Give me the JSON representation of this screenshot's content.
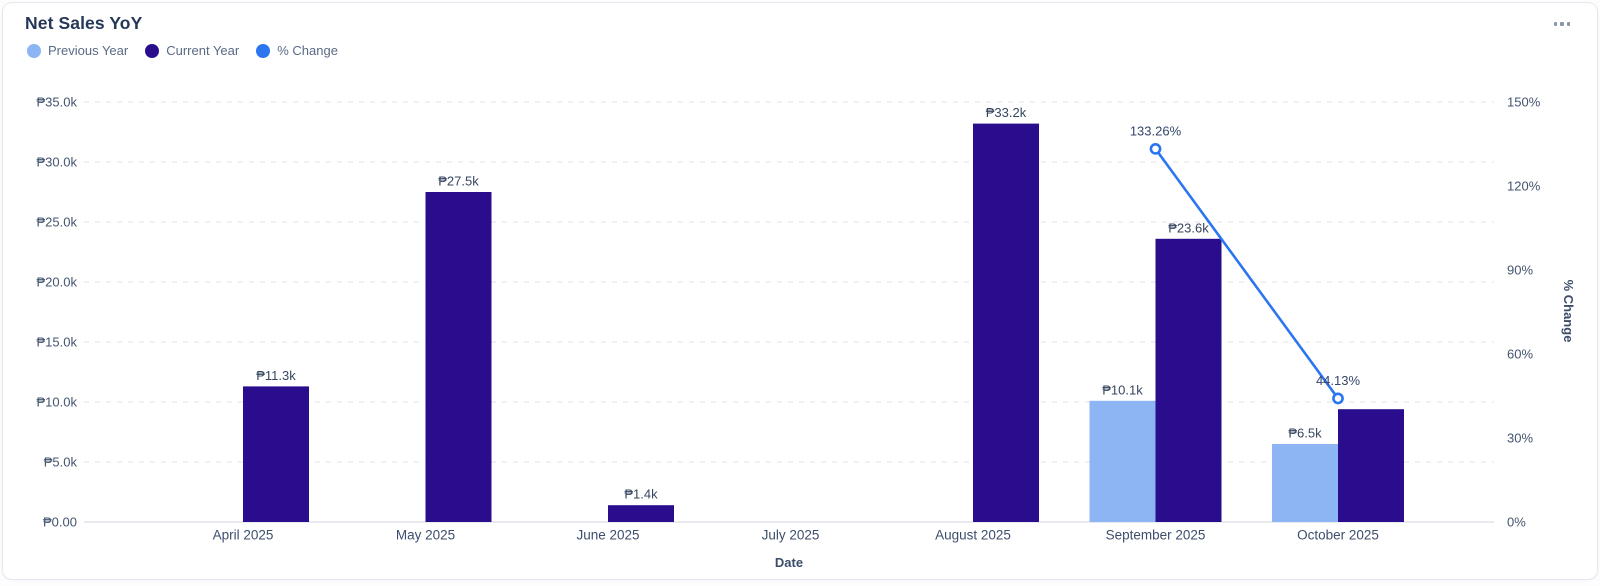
{
  "header": {
    "title": "Net Sales YoY"
  },
  "legend": {
    "items": [
      {
        "label": "Previous Year",
        "color": "#8db5f3"
      },
      {
        "label": "Current Year",
        "color": "#290d8d"
      },
      {
        "label": "% Change",
        "color": "#2b76f0"
      }
    ]
  },
  "chart_data": {
    "type": "bar",
    "subtype": "grouped-bars-with-line-dual-axis",
    "title": "Net Sales YoY",
    "xlabel": "Date",
    "ylabel_right": "% Change",
    "grid": "dashed horizontal gridlines, legend top-left",
    "categories": [
      "April 2025",
      "May 2025",
      "June 2025",
      "July 2025",
      "August 2025",
      "September 2025",
      "October 2025"
    ],
    "series": [
      {
        "name": "Previous Year",
        "type": "bar",
        "axis": "left",
        "color": "#8db5f3",
        "values": [
          null,
          null,
          null,
          null,
          null,
          10100,
          6500
        ],
        "value_labels": [
          "",
          "",
          "",
          "",
          "",
          "₱10.1k",
          "₱6.5k"
        ]
      },
      {
        "name": "Current Year",
        "type": "bar",
        "axis": "left",
        "color": "#290d8d",
        "values": [
          11300,
          27500,
          1400,
          null,
          33200,
          23600,
          9400
        ],
        "value_labels": [
          "₱11.3k",
          "₱27.5k",
          "₱1.4k",
          "",
          "₱33.2k",
          "₱23.6k",
          ""
        ]
      },
      {
        "name": "% Change",
        "type": "line",
        "axis": "right",
        "color": "#2b76f0",
        "values": [
          null,
          null,
          null,
          null,
          null,
          133.26,
          44.13
        ],
        "value_labels": [
          "",
          "",
          "",
          "",
          "",
          "133.26%",
          "44.13%"
        ]
      }
    ],
    "left_axis": {
      "min": 0,
      "max": 35000,
      "tick_values": [
        35000,
        30000,
        25000,
        20000,
        15000,
        10000,
        5000,
        0
      ],
      "tick_labels": [
        "₱35.0k",
        "₱30.0k",
        "₱25.0k",
        "₱20.0k",
        "₱15.0k",
        "₱10.0k",
        "₱5.0k",
        "₱0.00"
      ]
    },
    "right_axis": {
      "title": "% Change",
      "min": 0,
      "max": 150,
      "tick_values": [
        150,
        120,
        90,
        60,
        30,
        0
      ],
      "tick_labels": [
        "150%",
        "120%",
        "90%",
        "60%",
        "30%",
        "0%"
      ]
    }
  }
}
